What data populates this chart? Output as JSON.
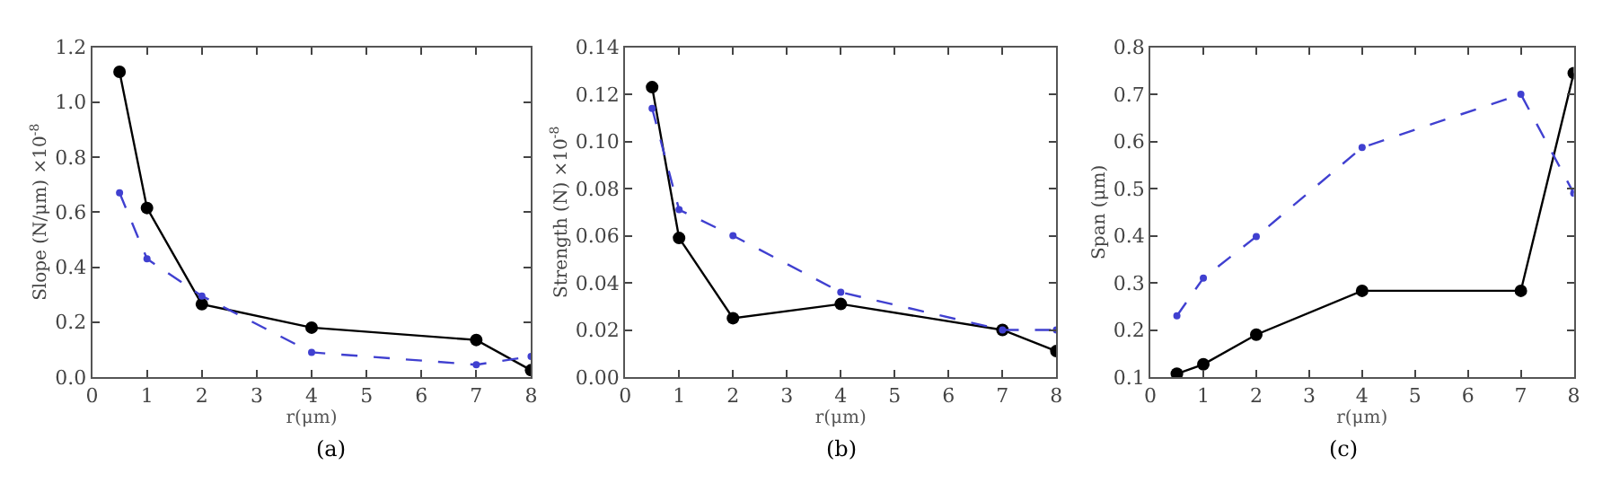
{
  "chart_data": [
    {
      "type": "line",
      "xlabel": "r(μm)",
      "ylabel": "Slope (N/μm) ×10$^{-8}$",
      "annotations": [
        "(a)"
      ],
      "x": [
        0.5,
        1,
        2,
        4,
        7,
        8
      ],
      "xlim": [
        0,
        8
      ],
      "xticks": [
        0,
        1,
        2,
        3,
        4,
        5,
        6,
        7,
        8
      ],
      "ylim": [
        0,
        1.2
      ],
      "yticks": [
        {
          "value": 0,
          "label": "0.0"
        },
        0.2,
        0.4,
        0.6,
        0.8,
        {
          "value": 1,
          "label": "1.0"
        },
        1.2
      ],
      "series": [
        {
          "color": "#000000",
          "line_style": "solid",
          "marker": "circle",
          "values": [
            1.11,
            0.615,
            0.265,
            0.18,
            0.135,
            0.025
          ]
        },
        {
          "color": "#4040d0",
          "line_style": "dashed",
          "marker": "circle",
          "values": [
            0.67,
            0.43,
            0.295,
            0.09,
            0.045,
            0.075
          ]
        }
      ]
    },
    {
      "type": "line",
      "xlabel": "r(μm)",
      "ylabel": "Strength (N) ×10$^{-8}$",
      "annotations": [
        "(b)"
      ],
      "x": [
        0.5,
        1,
        2,
        4,
        7,
        8
      ],
      "xlim": [
        0,
        8
      ],
      "xticks": [
        0,
        1,
        2,
        3,
        4,
        5,
        6,
        7,
        8
      ],
      "ylim": [
        0,
        0.14
      ],
      "yticks": [
        {
          "value": 0,
          "label": "0.00"
        },
        0.02,
        0.04,
        0.06,
        0.08,
        {
          "value": 0.1,
          "label": "0.10"
        },
        0.12,
        0.14
      ],
      "series": [
        {
          "color": "#000000",
          "line_style": "solid",
          "marker": "circle",
          "values": [
            0.123,
            0.059,
            0.025,
            0.031,
            0.02,
            0.011
          ]
        },
        {
          "color": "#4040d0",
          "line_style": "dashed",
          "marker": "circle",
          "values": [
            0.114,
            0.071,
            0.06,
            0.036,
            0.02,
            0.02
          ]
        }
      ]
    },
    {
      "type": "line",
      "xlabel": "r(μm)",
      "ylabel": "Span (μm)",
      "annotations": [
        "(c)"
      ],
      "x": [
        0.5,
        1,
        2,
        4,
        7,
        8
      ],
      "xlim": [
        0,
        8
      ],
      "xticks": [
        0,
        1,
        2,
        3,
        4,
        5,
        6,
        7,
        8
      ],
      "ylim": [
        0.1,
        0.8
      ],
      "yticks": [
        0.1,
        0.2,
        0.3,
        0.4,
        0.5,
        0.6,
        0.7,
        0.8
      ],
      "series": [
        {
          "color": "#000000",
          "line_style": "solid",
          "marker": "circle",
          "values": [
            0.107,
            0.127,
            0.19,
            0.283,
            0.283,
            0.745
          ]
        },
        {
          "color": "#4040d0",
          "line_style": "dashed",
          "marker": "circle",
          "values": [
            0.23,
            0.31,
            0.398,
            0.587,
            0.7,
            0.49
          ]
        }
      ]
    }
  ]
}
